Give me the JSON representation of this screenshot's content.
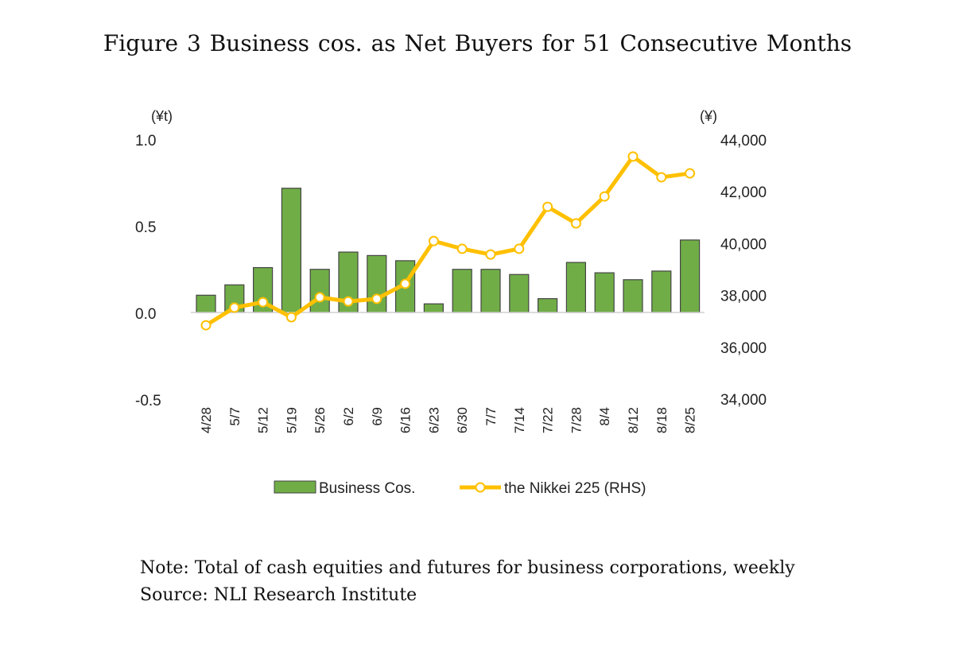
{
  "title": "Figure 3   Business cos. as Net Buyers for 51 Consecutive Months",
  "note": "Note: Total of cash equities and futures for business corporations, weekly",
  "source": "Source: NLI Research Institute",
  "chart_data": {
    "type": "bar+line",
    "categories": [
      "4/28",
      "5/7",
      "5/12",
      "5/19",
      "5/26",
      "6/2",
      "6/9",
      "6/16",
      "6/23",
      "6/30",
      "7/7",
      "7/14",
      "7/22",
      "7/28",
      "8/4",
      "8/12",
      "8/18",
      "8/25"
    ],
    "left_axis": {
      "unit": "(¥t)",
      "ylim": [
        -0.5,
        1.0
      ],
      "ticks": [
        "1.0",
        "0.5",
        "0.0",
        "-0.5"
      ]
    },
    "right_axis": {
      "unit": "(¥)",
      "ylim": [
        34000,
        44000
      ],
      "ticks": [
        "44,000",
        "42,000",
        "40,000",
        "38,000",
        "36,000",
        "34,000"
      ]
    },
    "series": [
      {
        "name": "Business Cos.",
        "type": "bar",
        "axis": "left",
        "color": "#70ad47",
        "values": [
          0.1,
          0.16,
          0.26,
          0.72,
          0.25,
          0.35,
          0.33,
          0.3,
          0.05,
          0.25,
          0.25,
          0.22,
          0.08,
          0.29,
          0.23,
          0.19,
          0.24,
          0.42
        ]
      },
      {
        "name": "the Nikkei 225 (RHS)",
        "type": "line",
        "axis": "right",
        "color": "#ffc000",
        "values": [
          36850,
          37530,
          37740,
          37160,
          37930,
          37770,
          37870,
          38450,
          40100,
          39800,
          39580,
          39800,
          41420,
          40780,
          41820,
          43360,
          42560,
          42710
        ]
      }
    ],
    "grid": false,
    "legend": "bottom"
  }
}
